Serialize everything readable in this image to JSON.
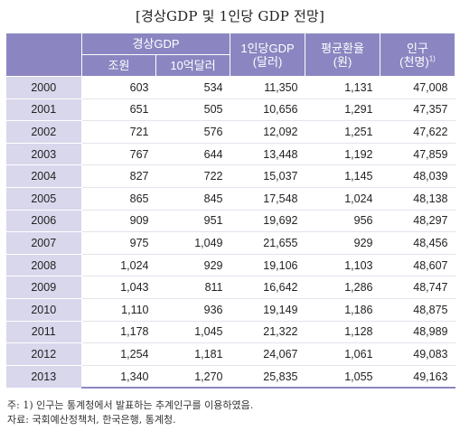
{
  "title": "[경상GDP 및 1인당 GDP 전망]",
  "header": {
    "gdp_group": "경상GDP",
    "gdp_trillion_won": "조원",
    "gdp_billion_usd": "10억달러",
    "per_capita_line1": "1인당GDP",
    "per_capita_line2": "(달러)",
    "exchange_line1": "평균환율",
    "exchange_line2": "(원)",
    "population_line1": "인구",
    "population_line2": "(천명)",
    "population_footnote_mark": "1)"
  },
  "rows": [
    {
      "year": "2000",
      "gdp_won": "603",
      "gdp_usd": "534",
      "per_capita": "11,350",
      "exchange": "1,131",
      "population": "47,008"
    },
    {
      "year": "2001",
      "gdp_won": "651",
      "gdp_usd": "505",
      "per_capita": "10,656",
      "exchange": "1,291",
      "population": "47,357"
    },
    {
      "year": "2002",
      "gdp_won": "721",
      "gdp_usd": "576",
      "per_capita": "12,092",
      "exchange": "1,251",
      "population": "47,622"
    },
    {
      "year": "2003",
      "gdp_won": "767",
      "gdp_usd": "644",
      "per_capita": "13,448",
      "exchange": "1,192",
      "population": "47,859"
    },
    {
      "year": "2004",
      "gdp_won": "827",
      "gdp_usd": "722",
      "per_capita": "15,037",
      "exchange": "1,145",
      "population": "48,039"
    },
    {
      "year": "2005",
      "gdp_won": "865",
      "gdp_usd": "845",
      "per_capita": "17,548",
      "exchange": "1,024",
      "population": "48,138"
    },
    {
      "year": "2006",
      "gdp_won": "909",
      "gdp_usd": "951",
      "per_capita": "19,692",
      "exchange": "956",
      "population": "48,297"
    },
    {
      "year": "2007",
      "gdp_won": "975",
      "gdp_usd": "1,049",
      "per_capita": "21,655",
      "exchange": "929",
      "population": "48,456"
    },
    {
      "year": "2008",
      "gdp_won": "1,024",
      "gdp_usd": "929",
      "per_capita": "19,106",
      "exchange": "1,103",
      "population": "48,607"
    },
    {
      "year": "2009",
      "gdp_won": "1,043",
      "gdp_usd": "811",
      "per_capita": "16,642",
      "exchange": "1,286",
      "population": "48,747"
    },
    {
      "year": "2010",
      "gdp_won": "1,110",
      "gdp_usd": "936",
      "per_capita": "19,149",
      "exchange": "1,186",
      "population": "48,875"
    },
    {
      "year": "2011",
      "gdp_won": "1,178",
      "gdp_usd": "1,045",
      "per_capita": "21,322",
      "exchange": "1,128",
      "population": "48,989"
    },
    {
      "year": "2012",
      "gdp_won": "1,254",
      "gdp_usd": "1,181",
      "per_capita": "24,067",
      "exchange": "1,061",
      "population": "49,083"
    },
    {
      "year": "2013",
      "gdp_won": "1,340",
      "gdp_usd": "1,270",
      "per_capita": "25,835",
      "exchange": "1,055",
      "population": "49,163"
    }
  ],
  "notes": {
    "footnote": "주: 1) 인구는 통계청에서 발표하는 추계인구를 이용하였음.",
    "source": "자료: 국회예산정책처, 한국은행, 통계청."
  }
}
